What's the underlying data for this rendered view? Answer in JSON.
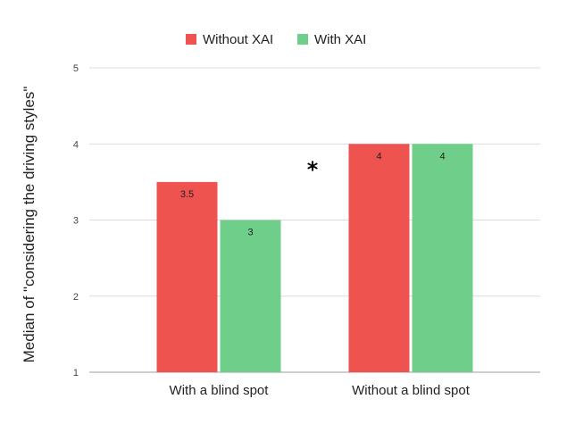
{
  "chart_data": {
    "type": "bar",
    "title": "",
    "xlabel": "",
    "ylabel": "Median of \"considering the driving styles\"",
    "categories": [
      "With a blind spot",
      "Without a blind spot"
    ],
    "series": [
      {
        "name": "Without XAI",
        "color": "#ef5350",
        "values": [
          3.5,
          4
        ]
      },
      {
        "name": "With XAI",
        "color": "#6fcf8a",
        "values": [
          3,
          4
        ]
      }
    ],
    "data_labels": [
      [
        "3.5",
        "4"
      ],
      [
        "3",
        "4"
      ]
    ],
    "ylim": [
      1,
      5
    ],
    "yticks": [
      1,
      2,
      3,
      4,
      5
    ],
    "grid": true,
    "legend_position": "top-center",
    "annotations": [
      {
        "text": "*",
        "between_categories": [
          0,
          1
        ]
      }
    ]
  }
}
